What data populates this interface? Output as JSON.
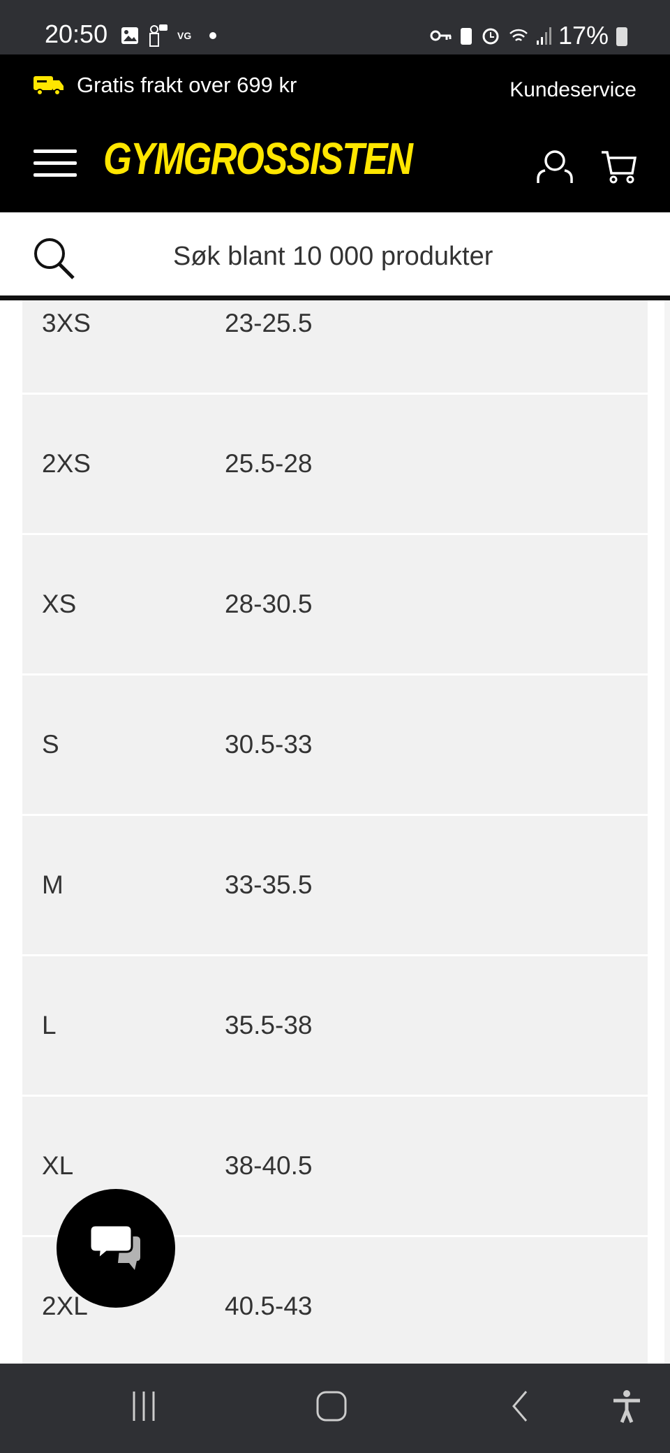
{
  "status_bar": {
    "time": "20:50",
    "battery": "17%",
    "left_icons": [
      "gallery-icon",
      "notification-icon",
      "vg-icon",
      "dot-icon"
    ],
    "vg_label": "VG",
    "right_icons": [
      "key-icon",
      "battery-saver-icon",
      "alarm-icon",
      "wifi-icon",
      "signal-icon",
      "battery-icon"
    ]
  },
  "header": {
    "shipping_text": "Gratis frakt over 699 kr",
    "customer_service": "Kundeservice",
    "logo": "GYMGROSSISTEN",
    "brand_color": "#ffe600"
  },
  "search": {
    "placeholder": "Søk blant 10 000 produkter"
  },
  "size_table": {
    "rows": [
      {
        "size": "3XS",
        "measure": "23-25.5"
      },
      {
        "size": "2XS",
        "measure": "25.5-28"
      },
      {
        "size": "XS",
        "measure": "28-30.5"
      },
      {
        "size": "S",
        "measure": "30.5-33"
      },
      {
        "size": "M",
        "measure": "33-35.5"
      },
      {
        "size": "L",
        "measure": "35.5-38"
      },
      {
        "size": "XL",
        "measure": "38-40.5"
      },
      {
        "size": "2XL",
        "measure": "40.5-43"
      }
    ]
  },
  "chat": {
    "icon": "chat-bubbles-icon"
  },
  "nav_bar": {
    "icons": [
      "recent-apps-icon",
      "home-icon",
      "back-icon",
      "accessibility-icon"
    ]
  }
}
